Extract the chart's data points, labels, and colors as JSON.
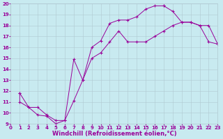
{
  "bg_color": "#c8eaf0",
  "line_color": "#990099",
  "grid_color": "#b0c8d0",
  "marker": "+",
  "marker_size": 3,
  "marker_lw": 0.8,
  "line_width": 0.7,
  "xlim": [
    0,
    23
  ],
  "ylim": [
    9,
    20
  ],
  "xticks": [
    0,
    1,
    2,
    3,
    4,
    5,
    6,
    7,
    8,
    9,
    10,
    11,
    12,
    13,
    14,
    15,
    16,
    17,
    18,
    19,
    20,
    21,
    22,
    23
  ],
  "yticks": [
    9,
    10,
    11,
    12,
    13,
    14,
    15,
    16,
    17,
    18,
    19,
    20
  ],
  "xlabel": "Windchill (Refroidissement éolien,°C)",
  "tick_fontsize": 5.0,
  "xlabel_fontsize": 6.0,
  "line1": [
    [
      1,
      11.8
    ],
    [
      1,
      11.0
    ],
    [
      2,
      10.5
    ],
    [
      3,
      9.8
    ],
    [
      4,
      9.7
    ],
    [
      5,
      9.0
    ],
    [
      6,
      9.3
    ],
    [
      7,
      11.1
    ],
    [
      8,
      13.0
    ],
    [
      9,
      16.0
    ],
    [
      10,
      16.6
    ],
    [
      11,
      18.2
    ],
    [
      12,
      18.5
    ],
    [
      13,
      18.5
    ],
    [
      14,
      18.8
    ],
    [
      15,
      19.5
    ],
    [
      16,
      19.8
    ],
    [
      17,
      19.8
    ]
  ],
  "line2": [
    [
      1,
      11.8
    ],
    [
      2,
      10.5
    ],
    [
      3,
      10.5
    ],
    [
      4,
      9.8
    ],
    [
      5,
      9.3
    ],
    [
      6,
      9.3
    ],
    [
      7,
      14.9
    ],
    [
      8,
      13.0
    ],
    [
      9,
      15.0
    ],
    [
      10,
      15.5
    ],
    [
      11,
      16.5
    ],
    [
      12,
      17.5
    ],
    [
      13,
      16.5
    ],
    [
      14,
      16.5
    ],
    [
      15,
      16.5
    ],
    [
      16,
      17.0
    ],
    [
      17,
      17.5
    ],
    [
      18,
      18.0
    ],
    [
      19,
      18.3
    ],
    [
      20,
      18.3
    ],
    [
      21,
      18.0
    ],
    [
      22,
      16.5
    ],
    [
      23,
      16.3
    ]
  ],
  "line3": [
    [
      17,
      19.8
    ],
    [
      18,
      19.3
    ],
    [
      19,
      18.3
    ],
    [
      20,
      18.3
    ],
    [
      21,
      18.0
    ],
    [
      22,
      18.0
    ],
    [
      23,
      16.3
    ]
  ]
}
